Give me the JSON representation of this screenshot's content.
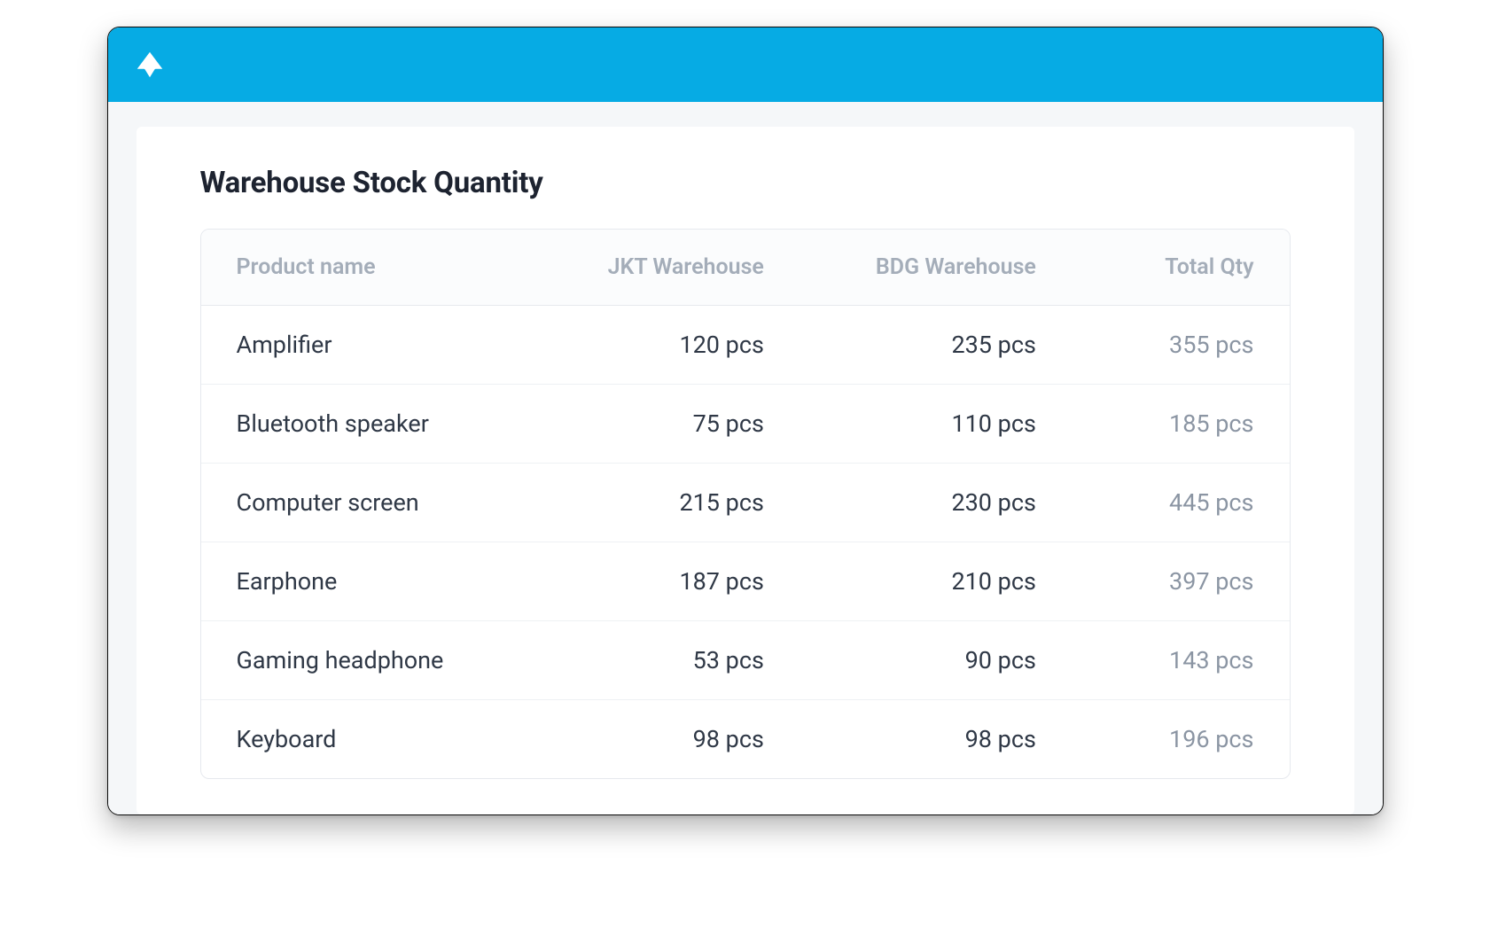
{
  "header": {
    "brand_icon": "arrow-up-logo",
    "brand_color": "#06abe4",
    "icon_color": "#ffffff"
  },
  "card": {
    "title": "Warehouse Stock Quantity",
    "title_color": "#1d2330",
    "background": "#ffffff"
  },
  "page": {
    "background": "#f5f7f9",
    "border_color": "#e6e9ee"
  },
  "table": {
    "header_bg": "#fbfcfd",
    "header_text_color": "#a4adb9",
    "cell_text_color": "#2f3846",
    "total_text_color": "#8b95a3",
    "row_border_color": "#eef1f4",
    "unit": "pcs",
    "columns": [
      {
        "key": "name",
        "label": "Product name",
        "align": "left"
      },
      {
        "key": "jkt",
        "label": "JKT Warehouse",
        "align": "right"
      },
      {
        "key": "bdg",
        "label": "BDG Warehouse",
        "align": "right"
      },
      {
        "key": "total",
        "label": "Total Qty",
        "align": "right"
      }
    ],
    "rows": [
      {
        "name": "Amplifier",
        "jkt": 120,
        "bdg": 235,
        "total": 355
      },
      {
        "name": "Bluetooth speaker",
        "jkt": 75,
        "bdg": 110,
        "total": 185
      },
      {
        "name": "Computer screen",
        "jkt": 215,
        "bdg": 230,
        "total": 445
      },
      {
        "name": "Earphone",
        "jkt": 187,
        "bdg": 210,
        "total": 397
      },
      {
        "name": "Gaming headphone",
        "jkt": 53,
        "bdg": 90,
        "total": 143
      },
      {
        "name": "Keyboard",
        "jkt": 98,
        "bdg": 98,
        "total": 196
      }
    ]
  }
}
